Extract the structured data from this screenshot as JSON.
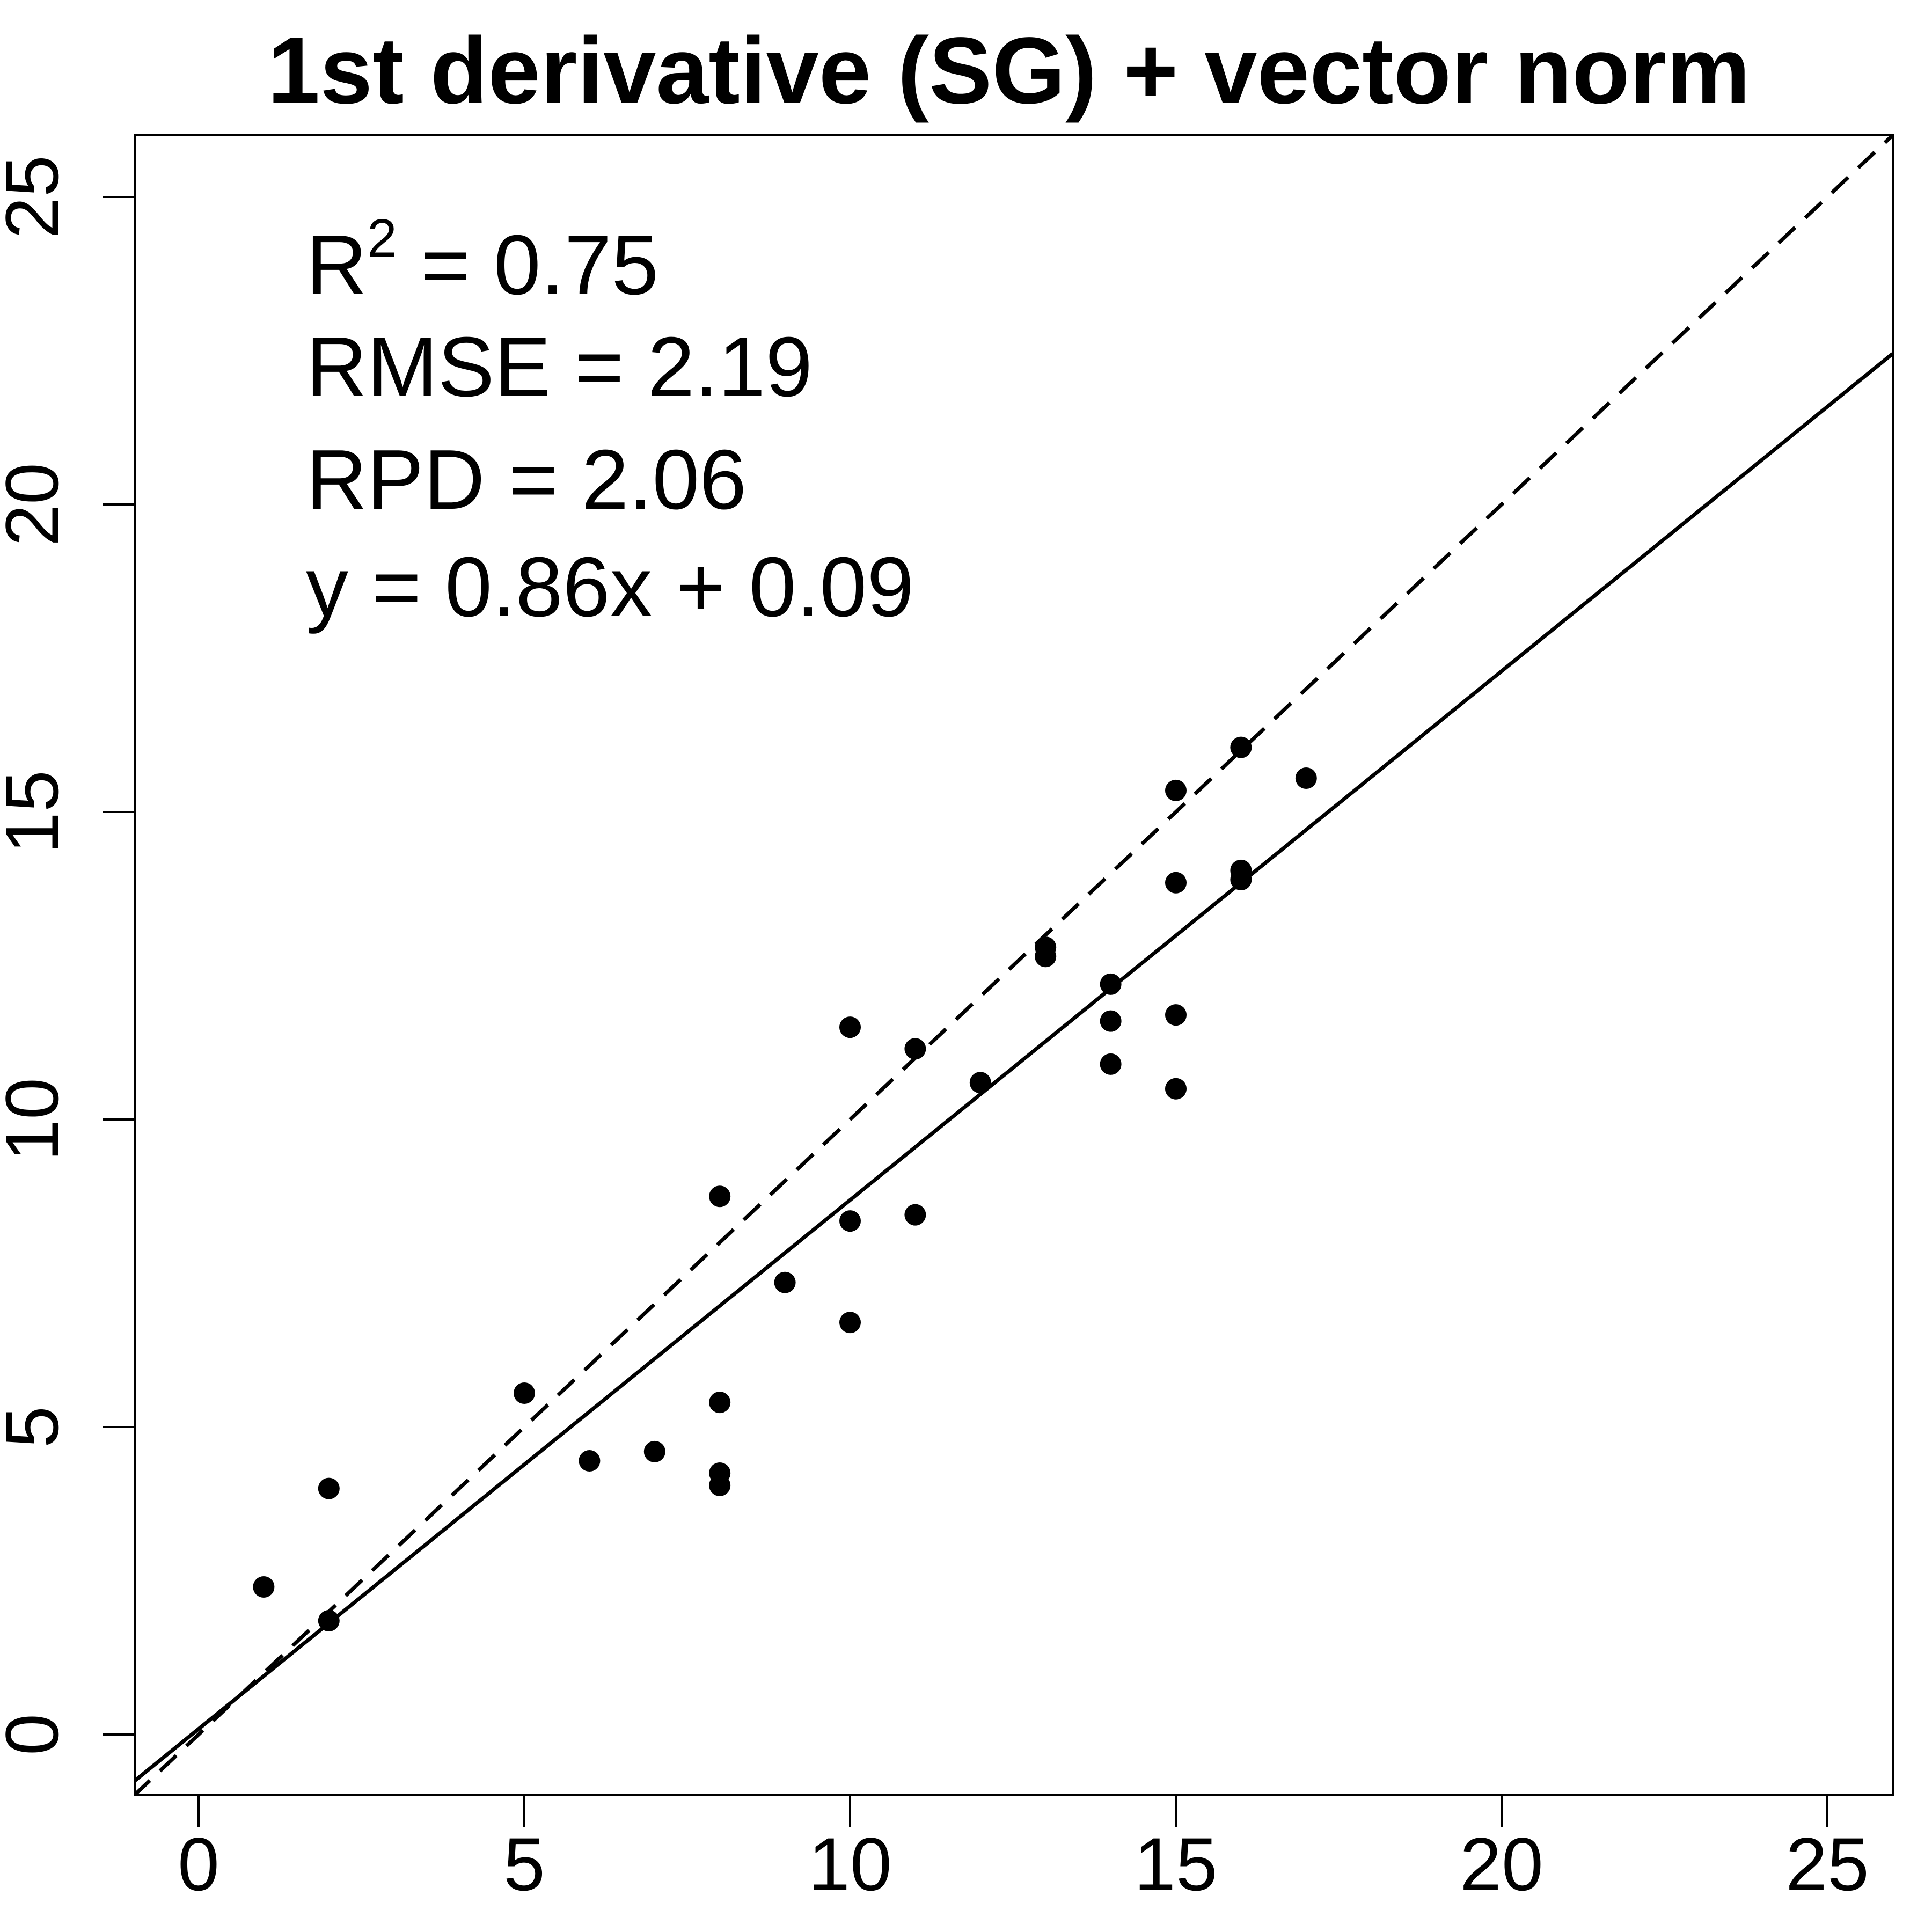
{
  "chart_data": {
    "type": "scatter",
    "title": "1st derivative (SG) + vector norm",
    "xlabel": "",
    "ylabel": "",
    "xlim": [
      -1,
      26
    ],
    "ylim": [
      -1,
      26
    ],
    "x_ticks": [
      "0",
      "5",
      "10",
      "15",
      "20",
      "25"
    ],
    "y_ticks": [
      "0",
      "5",
      "10",
      "15",
      "20",
      "25"
    ],
    "grid": false,
    "points": [
      {
        "x": 1,
        "y": 2.4
      },
      {
        "x": 2,
        "y": 4.0
      },
      {
        "x": 2,
        "y": 1.85
      },
      {
        "x": 5,
        "y": 5.55
      },
      {
        "x": 6,
        "y": 4.45
      },
      {
        "x": 7,
        "y": 4.6
      },
      {
        "x": 8,
        "y": 8.75
      },
      {
        "x": 8,
        "y": 5.4
      },
      {
        "x": 8,
        "y": 4.25
      },
      {
        "x": 8,
        "y": 4.05
      },
      {
        "x": 9,
        "y": 7.35
      },
      {
        "x": 10,
        "y": 11.5
      },
      {
        "x": 10,
        "y": 8.35
      },
      {
        "x": 10,
        "y": 6.7
      },
      {
        "x": 11,
        "y": 11.15
      },
      {
        "x": 11,
        "y": 8.45
      },
      {
        "x": 12,
        "y": 10.6
      },
      {
        "x": 13,
        "y": 12.8
      },
      {
        "x": 13,
        "y": 12.65
      },
      {
        "x": 14,
        "y": 12.2
      },
      {
        "x": 14,
        "y": 11.6
      },
      {
        "x": 14,
        "y": 10.9
      },
      {
        "x": 15,
        "y": 15.35
      },
      {
        "x": 15,
        "y": 13.85
      },
      {
        "x": 15,
        "y": 11.7
      },
      {
        "x": 15,
        "y": 10.5
      },
      {
        "x": 16,
        "y": 16.05
      },
      {
        "x": 16,
        "y": 14.05
      },
      {
        "x": 16,
        "y": 13.9
      },
      {
        "x": 17,
        "y": 15.55
      }
    ],
    "fit_line": {
      "slope": 0.86,
      "intercept": 0.09,
      "style": "solid"
    },
    "identity_line": {
      "slope": 1,
      "intercept": 0,
      "style": "dashed"
    },
    "annotations": {
      "r2_base": "R",
      "r2_sup": "2",
      "r2_value": " = 0.75",
      "rmse": "RMSE = 2.19",
      "rpd": "RPD = 2.06",
      "equation": "y = 0.86x + 0.09"
    }
  }
}
